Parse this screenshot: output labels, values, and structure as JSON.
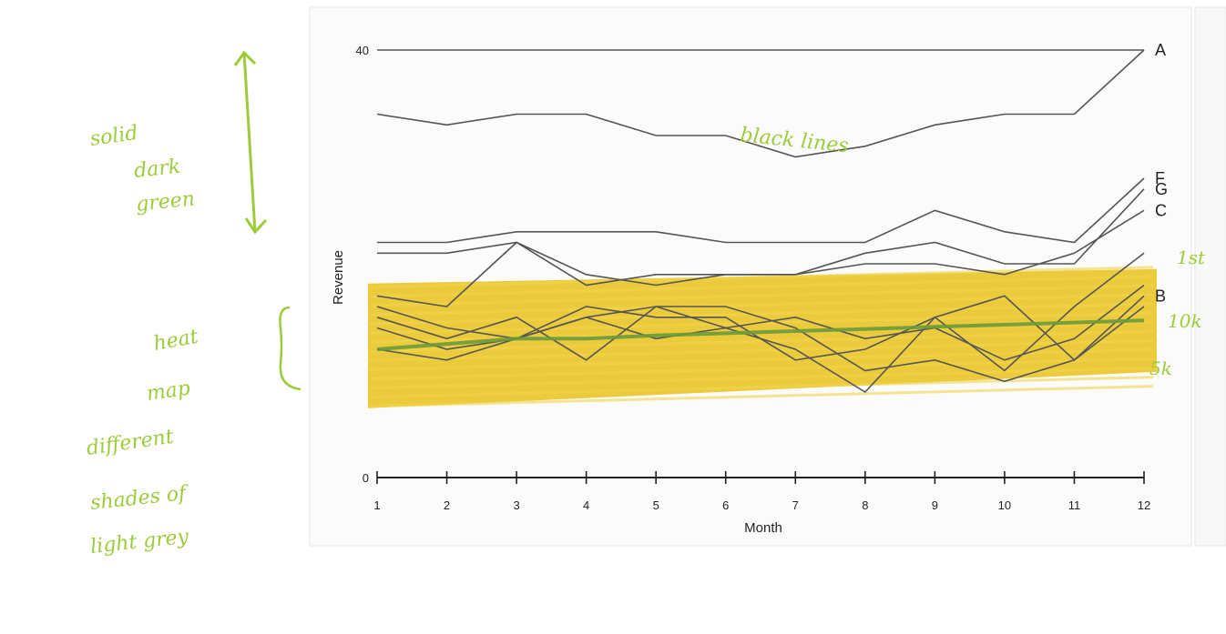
{
  "chart_data": {
    "type": "line",
    "title": "",
    "xlabel": "Month",
    "ylabel": "Revenue",
    "x": [
      1,
      2,
      3,
      4,
      5,
      6,
      7,
      8,
      9,
      10,
      11,
      12
    ],
    "y_ticks": [
      "0",
      "40"
    ],
    "ylim": [
      0,
      40
    ],
    "grid": false,
    "legend": "line-end labels (right)",
    "series": [
      {
        "name": "A",
        "values": [
          34,
          33,
          34,
          34,
          32,
          32,
          30,
          31,
          33,
          34,
          34,
          40
        ]
      },
      {
        "name": "F",
        "values": [
          22,
          22,
          23,
          23,
          23,
          22,
          22,
          22,
          25,
          23,
          22,
          28
        ]
      },
      {
        "name": "G",
        "values": [
          21,
          21,
          22,
          18,
          19,
          19,
          19,
          21,
          22,
          20,
          20,
          27
        ]
      },
      {
        "name": "C",
        "values": [
          17,
          16,
          22,
          19,
          18,
          19,
          19,
          20,
          20,
          19,
          21,
          25
        ]
      },
      {
        "name": "B",
        "values": [
          15,
          13,
          15,
          11,
          16,
          14,
          12,
          8,
          15,
          17,
          11,
          17
        ]
      },
      {
        "name": "",
        "values": [
          16,
          14,
          13,
          16,
          15,
          15,
          11,
          12,
          15,
          10,
          16,
          21
        ]
      },
      {
        "name": "",
        "values": [
          14,
          12,
          13,
          15,
          16,
          16,
          14,
          10,
          11,
          9,
          11,
          16
        ]
      },
      {
        "name": "",
        "values": [
          12,
          11,
          13,
          15,
          13,
          14,
          15,
          13,
          14,
          11,
          13,
          18
        ]
      }
    ],
    "highlight_band": {
      "y_from": 7,
      "y_to": 19,
      "color": "#e8c21a"
    },
    "trend_line": {
      "values": [
        12,
        12.5,
        13,
        13,
        13.3,
        13.5,
        13.7,
        13.9,
        14.1,
        14.3,
        14.5,
        14.7
      ],
      "color": "#6a9a3a"
    }
  },
  "colors": {
    "line": "#555555",
    "axis": "#222222",
    "annotation": "#9ccc3a",
    "highlight": "#e8c21a"
  },
  "annotations": {
    "top_left": [
      "solid",
      "dark",
      "green"
    ],
    "middle_left": [
      "heat",
      "map",
      "different",
      "shades of",
      "light grey"
    ],
    "in_chart": "black lines",
    "right_1": "1st",
    "right_2": "10k",
    "right_3": "5k"
  }
}
